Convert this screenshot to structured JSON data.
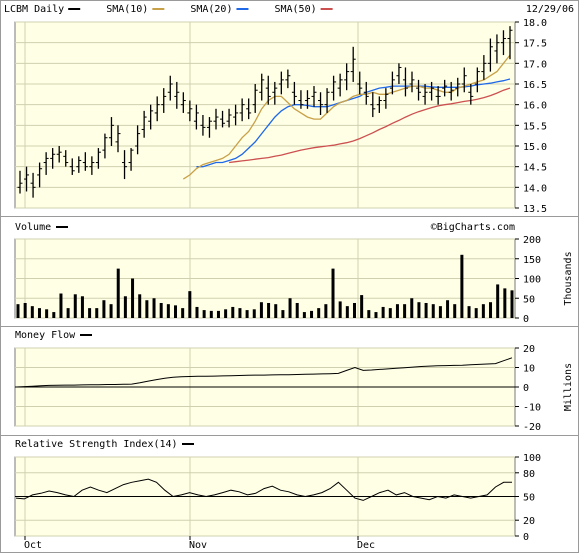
{
  "header": {
    "date": "12/29/06"
  },
  "watermark": "©BigCharts.com",
  "months": [
    "Oct",
    "Nov",
    "Dec"
  ],
  "chart_data": [
    {
      "type": "ohlc",
      "legend": [
        {
          "name": "LCBM Daily",
          "color": "#000000"
        },
        {
          "name": "SMA(10)",
          "color": "#c8a048"
        },
        {
          "name": "SMA(20)",
          "color": "#1f68e8"
        },
        {
          "name": "SMA(50)",
          "color": "#cc5050"
        }
      ],
      "yticks": [
        "18.0",
        "17.5",
        "17.0",
        "16.5",
        "16.0",
        "15.5",
        "15.0",
        "14.5",
        "14.0",
        "13.5"
      ],
      "ylim": [
        13.5,
        18.0
      ],
      "ohlc": [
        [
          14.0,
          14.4,
          13.85,
          14.1
        ],
        [
          14.2,
          14.5,
          13.9,
          14.3
        ],
        [
          14.1,
          14.35,
          13.75,
          14.0
        ],
        [
          14.3,
          14.6,
          14.0,
          14.45
        ],
        [
          14.6,
          14.85,
          14.3,
          14.7
        ],
        [
          14.7,
          14.95,
          14.45,
          14.8
        ],
        [
          14.8,
          15.0,
          14.6,
          14.85
        ],
        [
          14.75,
          14.9,
          14.5,
          14.6
        ],
        [
          14.5,
          14.7,
          14.3,
          14.4
        ],
        [
          14.5,
          14.75,
          14.35,
          14.65
        ],
        [
          14.6,
          14.85,
          14.4,
          14.5
        ],
        [
          14.5,
          14.75,
          14.3,
          14.6
        ],
        [
          14.6,
          14.95,
          14.45,
          14.85
        ],
        [
          14.9,
          15.3,
          14.7,
          15.2
        ],
        [
          15.2,
          15.7,
          15.0,
          15.5
        ],
        [
          15.1,
          15.5,
          14.85,
          15.3
        ],
        [
          14.6,
          14.9,
          14.2,
          14.5
        ],
        [
          14.6,
          14.95,
          14.4,
          14.9
        ],
        [
          15.0,
          15.5,
          14.8,
          15.3
        ],
        [
          15.4,
          15.85,
          15.2,
          15.7
        ],
        [
          15.6,
          16.0,
          15.4,
          15.85
        ],
        [
          15.8,
          16.2,
          15.6,
          16.0
        ],
        [
          16.0,
          16.4,
          15.8,
          16.2
        ],
        [
          16.3,
          16.7,
          16.1,
          16.5
        ],
        [
          16.2,
          16.55,
          15.9,
          16.3
        ],
        [
          16.0,
          16.3,
          15.8,
          16.1
        ],
        [
          15.8,
          16.1,
          15.6,
          15.9
        ],
        [
          15.6,
          16.0,
          15.4,
          15.8
        ],
        [
          15.5,
          15.75,
          15.25,
          15.45
        ],
        [
          15.45,
          15.7,
          15.2,
          15.6
        ],
        [
          15.6,
          15.9,
          15.4,
          15.7
        ],
        [
          15.65,
          15.85,
          15.45,
          15.55
        ],
        [
          15.6,
          15.9,
          15.45,
          15.75
        ],
        [
          15.7,
          16.0,
          15.5,
          15.8
        ],
        [
          15.8,
          16.15,
          15.6,
          16.0
        ],
        [
          15.9,
          16.15,
          15.65,
          15.8
        ],
        [
          16.0,
          16.5,
          15.8,
          16.35
        ],
        [
          16.3,
          16.75,
          16.1,
          16.6
        ],
        [
          16.4,
          16.7,
          16.0,
          16.2
        ],
        [
          16.3,
          16.55,
          16.0,
          16.4
        ],
        [
          16.5,
          16.8,
          16.25,
          16.6
        ],
        [
          16.6,
          16.85,
          16.4,
          16.7
        ],
        [
          16.3,
          16.55,
          16.0,
          16.2
        ],
        [
          16.1,
          16.35,
          15.9,
          16.0
        ],
        [
          16.1,
          16.35,
          15.9,
          16.15
        ],
        [
          16.2,
          16.45,
          15.95,
          16.3
        ],
        [
          16.1,
          16.3,
          15.75,
          16.0
        ],
        [
          16.0,
          16.4,
          15.8,
          16.3
        ],
        [
          16.3,
          16.7,
          16.1,
          16.55
        ],
        [
          16.4,
          16.75,
          16.2,
          16.6
        ],
        [
          16.6,
          17.0,
          16.35,
          16.8
        ],
        [
          16.8,
          17.4,
          16.55,
          17.1
        ],
        [
          16.5,
          16.8,
          16.25,
          16.4
        ],
        [
          16.3,
          16.55,
          16.0,
          16.2
        ],
        [
          16.0,
          16.3,
          15.7,
          15.9
        ],
        [
          16.0,
          16.2,
          15.8,
          16.1
        ],
        [
          16.1,
          16.4,
          15.9,
          16.25
        ],
        [
          16.4,
          16.8,
          16.25,
          16.6
        ],
        [
          16.7,
          17.0,
          16.5,
          16.9
        ],
        [
          16.6,
          16.9,
          16.2,
          16.4
        ],
        [
          16.5,
          16.8,
          16.3,
          16.6
        ],
        [
          16.4,
          16.6,
          16.1,
          16.3
        ],
        [
          16.2,
          16.5,
          16.0,
          16.3
        ],
        [
          16.3,
          16.55,
          16.1,
          16.4
        ],
        [
          16.2,
          16.45,
          16.0,
          16.2
        ],
        [
          16.4,
          16.6,
          16.2,
          16.45
        ],
        [
          16.3,
          16.55,
          16.1,
          16.35
        ],
        [
          16.4,
          16.65,
          16.2,
          16.5
        ],
        [
          16.5,
          16.9,
          16.3,
          16.7
        ],
        [
          16.3,
          16.5,
          16.0,
          16.2
        ],
        [
          16.5,
          16.9,
          16.3,
          16.8
        ],
        [
          16.8,
          17.2,
          16.6,
          17.0
        ],
        [
          17.0,
          17.6,
          16.8,
          17.4
        ],
        [
          17.3,
          17.7,
          17.0,
          17.5
        ],
        [
          17.5,
          17.8,
          17.2,
          17.6
        ],
        [
          17.6,
          17.9,
          17.1,
          17.8
        ]
      ],
      "sma10": [
        14.2,
        14.3,
        14.45,
        14.55,
        14.6,
        14.65,
        14.7,
        14.8,
        15.0,
        15.2,
        15.35,
        15.6,
        15.9,
        16.1,
        16.2,
        16.2,
        16.05,
        15.9,
        15.8,
        15.7,
        15.65,
        15.65,
        15.8,
        15.95,
        16.05,
        16.1,
        16.2,
        16.25,
        16.25,
        16.3,
        16.25,
        16.25,
        16.3,
        16.35,
        16.4,
        16.45,
        16.45,
        16.4,
        16.4,
        16.35,
        16.3,
        16.3,
        16.4,
        16.45,
        16.5,
        16.55,
        16.6,
        16.7,
        16.8,
        17.0,
        17.2
      ],
      "sma20": [
        14.5,
        14.5,
        14.55,
        14.6,
        14.6,
        14.65,
        14.7,
        14.8,
        14.95,
        15.1,
        15.3,
        15.5,
        15.7,
        15.85,
        15.95,
        16.0,
        16.0,
        15.98,
        15.95,
        15.95,
        15.95,
        16.0,
        16.05,
        16.1,
        16.15,
        16.2,
        16.3,
        16.35,
        16.4,
        16.42,
        16.45,
        16.45,
        16.45,
        16.45,
        16.45,
        16.45,
        16.43,
        16.42,
        16.42,
        16.42,
        16.42,
        16.43,
        16.45,
        16.48,
        16.5,
        16.52,
        16.55,
        16.58,
        16.62
      ],
      "sma50": [
        14.6,
        14.62,
        14.64,
        14.66,
        14.68,
        14.7,
        14.72,
        14.75,
        14.78,
        14.82,
        14.86,
        14.9,
        14.93,
        14.96,
        14.98,
        15.0,
        15.02,
        15.05,
        15.08,
        15.12,
        15.18,
        15.25,
        15.32,
        15.4,
        15.47,
        15.55,
        15.62,
        15.7,
        15.77,
        15.83,
        15.88,
        15.93,
        15.97,
        16.0,
        16.02,
        16.05,
        16.08,
        16.1,
        16.13,
        16.17,
        16.22,
        16.28,
        16.35,
        16.4
      ]
    },
    {
      "type": "bar",
      "title": "Volume",
      "unit": "Thousands",
      "yticks": [
        "200",
        "150",
        "100",
        "50",
        "0"
      ],
      "ylim": [
        0,
        200
      ],
      "values": [
        35,
        38,
        30,
        25,
        22,
        15,
        62,
        25,
        60,
        55,
        25,
        25,
        45,
        35,
        125,
        55,
        100,
        60,
        45,
        50,
        38,
        35,
        32,
        25,
        68,
        28,
        20,
        18,
        18,
        22,
        28,
        25,
        20,
        22,
        40,
        38,
        35,
        20,
        50,
        38,
        15,
        18,
        25,
        35,
        125,
        42,
        30,
        38,
        58,
        20,
        15,
        28,
        25,
        35,
        35,
        50,
        40,
        38,
        35,
        30,
        45,
        35,
        160,
        30,
        25,
        35,
        40,
        85,
        75,
        70
      ]
    },
    {
      "type": "line",
      "title": "Money Flow",
      "unit": "Millions",
      "yticks": [
        "20",
        "10",
        "0",
        "-10",
        "-20"
      ],
      "ylim": [
        -20,
        20
      ],
      "values": [
        0,
        0.2,
        0.4,
        0.6,
        0.8,
        0.9,
        1.0,
        1.0,
        1.1,
        1.2,
        1.2,
        1.3,
        1.3,
        1.4,
        1.5,
        2.2,
        3.0,
        3.8,
        4.5,
        5.0,
        5.3,
        5.4,
        5.5,
        5.5,
        5.6,
        5.7,
        5.8,
        5.9,
        6.0,
        6.1,
        6.1,
        6.2,
        6.3,
        6.3,
        6.4,
        6.5,
        6.6,
        6.7,
        6.8,
        7.0,
        8.5,
        10.0,
        8.5,
        8.7,
        9.0,
        9.3,
        9.6,
        9.9,
        10.2,
        10.5,
        10.7,
        10.9,
        11.0,
        11.1,
        11.2,
        11.4,
        11.6,
        11.8,
        12.0,
        13.5,
        15.0
      ]
    },
    {
      "type": "line",
      "title": "Relative Strength Index(14)",
      "yticks": [
        "100",
        "80",
        "50",
        "20",
        "0"
      ],
      "ylim": [
        0,
        100
      ],
      "values": [
        48,
        47,
        52,
        54,
        57,
        55,
        52,
        50,
        58,
        62,
        58,
        55,
        60,
        65,
        68,
        70,
        72,
        68,
        58,
        50,
        52,
        55,
        52,
        50,
        52,
        55,
        58,
        56,
        52,
        54,
        60,
        63,
        58,
        56,
        52,
        50,
        52,
        55,
        60,
        68,
        58,
        48,
        45,
        50,
        55,
        58,
        52,
        55,
        50,
        48,
        46,
        50,
        48,
        52,
        50,
        48,
        50,
        52,
        62,
        68,
        68
      ]
    }
  ]
}
